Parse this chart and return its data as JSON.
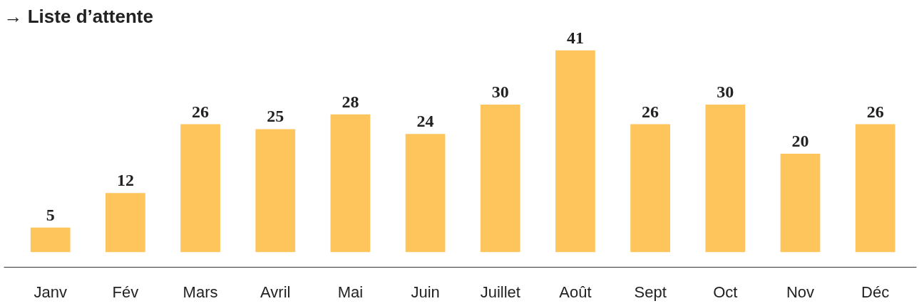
{
  "chart_data": {
    "type": "bar",
    "title": "→ Liste d’attente",
    "categories": [
      "Janv",
      "Fév",
      "Mars",
      "Avril",
      "Mai",
      "Juin",
      "Juillet",
      "Août",
      "Sept",
      "Oct",
      "Nov",
      "Déc"
    ],
    "values": [
      5,
      12,
      26,
      25,
      28,
      24,
      30,
      41,
      26,
      30,
      20,
      26
    ],
    "color": "#fdc55c",
    "data_labels": true,
    "grid": false,
    "tick_labels": "x"
  }
}
